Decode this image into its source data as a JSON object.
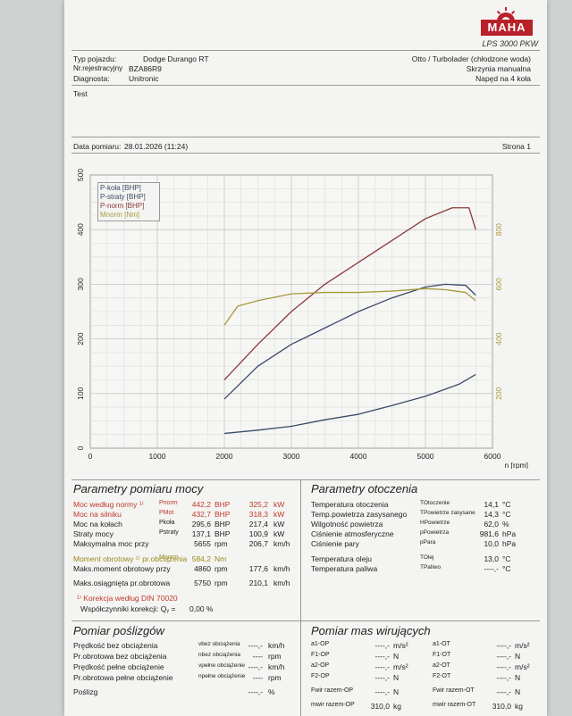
{
  "header": {
    "brand": "MAHA",
    "model": "LPS 3000 PKW",
    "vehicle_type_label": "Typ pojazdu:",
    "vehicle_type": "Dodge Durango RT",
    "reg_label": "Nr.rejestracyjny",
    "reg": "BZA86R9",
    "diag_label": "Diagnosta:",
    "diag": "Unitronic",
    "engine": "Otto / Turbolader (chłodzone woda)",
    "gearbox": "Skrzynia manualna",
    "drive": "Napęd na 4 koła",
    "test": "Test",
    "date_label": "Data pomiaru:",
    "date": "28.01.2026 (11:24)",
    "page_label": "Strona 1"
  },
  "chart_data": {
    "type": "line",
    "x_ticks": [
      "0",
      "1000",
      "2000",
      "3000",
      "4000",
      "5000",
      "6000"
    ],
    "y_left_ticks": [
      "0",
      "100",
      "200",
      "300",
      "400",
      "500"
    ],
    "y_right_ticks": [
      "200",
      "400",
      "600",
      "800"
    ],
    "xlabel": "n [rpm]",
    "xlim": [
      0,
      6000
    ],
    "ylim": [
      0,
      500
    ],
    "y2lim": [
      0,
      1000
    ],
    "grid": true,
    "legend_position": "top-left",
    "legend": [
      {
        "label": "P-koła [BHP]",
        "color": "#3a4a66"
      },
      {
        "label": "P-straty [BHP]",
        "color": "#3a4a66"
      },
      {
        "label": "P-norm [BHP]",
        "color": "#8a3a3a"
      },
      {
        "label": "Mnorm [Nm]",
        "color": "#a89a3a"
      }
    ],
    "series": [
      {
        "name": "P-norm",
        "axis": "left",
        "color": "#8a3a3a",
        "x": [
          2000,
          2500,
          3000,
          3500,
          4000,
          4500,
          5000,
          5400,
          5650,
          5750
        ],
        "y": [
          125,
          190,
          250,
          300,
          340,
          380,
          420,
          440,
          440,
          400
        ]
      },
      {
        "name": "P-koła",
        "axis": "left",
        "color": "#3a4a66",
        "x": [
          2000,
          2500,
          3000,
          3500,
          4000,
          4500,
          5000,
          5300,
          5600,
          5750
        ],
        "y": [
          90,
          150,
          190,
          220,
          250,
          275,
          295,
          300,
          298,
          280
        ]
      },
      {
        "name": "P-straty",
        "axis": "left",
        "color": "#3a4a66",
        "x": [
          2000,
          2500,
          3000,
          3500,
          4000,
          4500,
          5000,
          5500,
          5750
        ],
        "y": [
          27,
          33,
          40,
          52,
          62,
          78,
          95,
          117,
          135
        ]
      },
      {
        "name": "Mnorm",
        "axis": "right",
        "color": "#a89a3a",
        "x": [
          2000,
          2200,
          2500,
          3000,
          3500,
          4000,
          4500,
          5000,
          5300,
          5600,
          5750
        ],
        "y": [
          450,
          520,
          540,
          565,
          570,
          570,
          575,
          584,
          580,
          570,
          540
        ]
      }
    ]
  },
  "params": {
    "title": "Parametry pomiaru mocy",
    "rows": [
      {
        "label": "Moc według normy ¹⁾",
        "sym": "Pnorm",
        "v1": "442,2",
        "u1": "BHP",
        "v2": "325,2",
        "u2": "kW",
        "cls": "red"
      },
      {
        "label": "Moc na silniku",
        "sym": "PMot",
        "v1": "432,7",
        "u1": "BHP",
        "v2": "318,3",
        "u2": "kW",
        "cls": "red"
      },
      {
        "label": "Moc na kołach",
        "sym": "Pkoła",
        "v1": "295,6",
        "u1": "BHP",
        "v2": "217,4",
        "u2": "kW",
        "cls": ""
      },
      {
        "label": "Straty mocy",
        "sym": "Pstraty",
        "v1": "137,1",
        "u1": "BHP",
        "v2": "100,9",
        "u2": "kW",
        "cls": ""
      },
      {
        "label": "Maksymalna moc przy",
        "sym": "",
        "v1": "5655",
        "u1": "rpm",
        "v2": "206,7",
        "u2": "km/h",
        "cls": ""
      },
      {
        "label": "Moment obrotowy ¹⁾ pr.obciązenia",
        "sym": "Mnorm",
        "v1": "584,2",
        "u1": "Nm",
        "v2": "",
        "u2": "",
        "cls": "olive"
      },
      {
        "label": "Maks.moment obrotowy przy",
        "sym": "",
        "v1": "4860",
        "u1": "rpm",
        "v2": "177,6",
        "u2": "km/h",
        "cls": ""
      },
      {
        "label": "Maks.osiągnięta pr.obrotowa",
        "sym": "",
        "v1": "5750",
        "u1": "rpm",
        "v2": "210,1",
        "u2": "km/h",
        "cls": ""
      }
    ],
    "note1": "¹⁾ Korekcja według DIN 70020",
    "note2": "Współczynniki korekcji: Qᵧ =",
    "note2_val": "0,00 %"
  },
  "env": {
    "title": "Parametry otoczenia",
    "rows": [
      {
        "label": "Temperatura otoczenia",
        "sym": "TOtoczenie",
        "v": "14,1",
        "u": "°C"
      },
      {
        "label": "Temp.powietrza zasysanego",
        "sym": "TPowietrze zasysane",
        "v": "14,3",
        "u": "°C"
      },
      {
        "label": "Wilgotność powietrza",
        "sym": "HPowietrze",
        "v": "62,0",
        "u": "%"
      },
      {
        "label": "Ciśnienie atmosferyczne",
        "sym": "pPowietrza",
        "v": "981,6",
        "u": "hPa"
      },
      {
        "label": "Ciśnienie pary",
        "sym": "pPara",
        "v": "10,0",
        "u": "hPa"
      },
      {
        "label": "Temperatura oleju",
        "sym": "TOlej",
        "v": "13,0",
        "u": "°C"
      },
      {
        "label": "Temperatura paliwa",
        "sym": "TPaliwo",
        "v": "----,-",
        "u": "°C"
      }
    ]
  },
  "slip": {
    "title": "Pomiar poślizgów",
    "rows": [
      {
        "label": "Prędkość bez obciążenia",
        "sym": "vbez obciążenia",
        "v": "----,-",
        "u": "km/h"
      },
      {
        "label": "Pr.obrotowa bez obciążenia",
        "sym": "nbez obciążenia",
        "v": "----",
        "u": "rpm"
      },
      {
        "label": "Prędkość pełne obciążenie",
        "sym": "vpełne obciążenie",
        "v": "----,-",
        "u": "km/h"
      },
      {
        "label": "Pr.obrotowa pełne obciążenie",
        "sym": "npełne obciążenie",
        "v": "----",
        "u": "rpm"
      },
      {
        "label": "Poślizg",
        "sym": "",
        "v": "----,-",
        "u": "%"
      }
    ]
  },
  "mass": {
    "title": "Pomiar mas wirujących",
    "rows": [
      {
        "s1": "a1-OP",
        "v1": "----,-",
        "u1": "m/s²",
        "s2": "a1-OT",
        "v2": "----,-",
        "u2": "m/s²"
      },
      {
        "s1": "F1-OP",
        "v1": "----,-",
        "u1": "N",
        "s2": "F1-OT",
        "v2": "----,-",
        "u2": "N"
      },
      {
        "s1": "a2-OP",
        "v1": "----,-",
        "u1": "m/s²",
        "s2": "a2-OT",
        "v2": "----,-",
        "u2": "m/s²"
      },
      {
        "s1": "F2-OP",
        "v1": "----,-",
        "u1": "N",
        "s2": "F2-OT",
        "v2": "----,-",
        "u2": "N"
      },
      {
        "s1": "Fwir razem-OP",
        "v1": "----,-",
        "u1": "N",
        "s2": "Fwir razem-OT",
        "v2": "----,-",
        "u2": "N"
      },
      {
        "s1": "mwir razem-OP",
        "v1": "310,0",
        "u1": "kg",
        "s2": "mwir razem-OT",
        "v2": "310,0",
        "u2": "kg"
      }
    ]
  }
}
